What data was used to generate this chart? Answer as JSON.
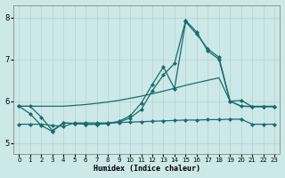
{
  "title": "",
  "xlabel": "Humidex (Indice chaleur)",
  "bg_color": "#cce8e8",
  "line_color": "#1a6b6b",
  "grid_color": "#b8d4d4",
  "xlim": [
    -0.5,
    23.5
  ],
  "ylim": [
    4.75,
    8.3
  ],
  "yticks": [
    5,
    6,
    7,
    8
  ],
  "xticks": [
    0,
    1,
    2,
    3,
    4,
    5,
    6,
    7,
    8,
    9,
    10,
    11,
    12,
    13,
    14,
    15,
    16,
    17,
    18,
    19,
    20,
    21,
    22,
    23
  ],
  "line1_x": [
    0,
    1,
    2,
    3,
    4,
    5,
    6,
    7,
    8,
    9,
    10,
    11,
    12,
    13,
    14,
    15,
    16,
    17,
    18,
    19,
    20,
    21,
    22,
    23
  ],
  "line1_y": [
    5.88,
    5.7,
    5.42,
    5.28,
    5.48,
    5.47,
    5.45,
    5.45,
    5.47,
    5.52,
    5.65,
    5.95,
    6.4,
    6.82,
    6.3,
    7.9,
    7.6,
    7.25,
    7.05,
    6.0,
    5.88,
    5.87,
    5.87,
    5.87
  ],
  "line2_x": [
    0,
    1,
    2,
    3,
    4,
    5,
    6,
    7,
    8,
    9,
    10,
    11,
    12,
    13,
    14,
    15,
    16,
    17,
    18,
    19,
    20,
    21,
    22,
    23
  ],
  "line2_y": [
    5.88,
    5.88,
    5.88,
    5.88,
    5.88,
    5.9,
    5.92,
    5.95,
    5.98,
    6.02,
    6.07,
    6.12,
    6.18,
    6.24,
    6.31,
    6.38,
    6.44,
    6.5,
    6.56,
    6.0,
    5.88,
    5.88,
    5.88,
    5.88
  ],
  "line3_x": [
    0,
    1,
    2,
    3,
    4,
    5,
    6,
    7,
    8,
    9,
    10,
    11,
    12,
    13,
    14,
    15,
    16,
    17,
    18,
    19,
    20,
    21,
    22,
    23
  ],
  "line3_y": [
    5.88,
    5.88,
    5.62,
    5.3,
    5.48,
    5.47,
    5.45,
    5.45,
    5.47,
    5.5,
    5.6,
    5.8,
    6.25,
    6.63,
    6.9,
    7.93,
    7.65,
    7.2,
    7.0,
    6.0,
    6.02,
    5.87,
    5.87,
    5.87
  ],
  "line4_x": [
    0,
    1,
    2,
    3,
    4,
    5,
    6,
    7,
    8,
    9,
    10,
    11,
    12,
    13,
    14,
    15,
    16,
    17,
    18,
    19,
    20,
    21,
    22,
    23
  ],
  "line4_y": [
    5.45,
    5.45,
    5.45,
    5.42,
    5.4,
    5.48,
    5.48,
    5.48,
    5.48,
    5.49,
    5.5,
    5.51,
    5.52,
    5.53,
    5.54,
    5.55,
    5.55,
    5.56,
    5.56,
    5.57,
    5.57,
    5.45,
    5.45,
    5.45
  ]
}
